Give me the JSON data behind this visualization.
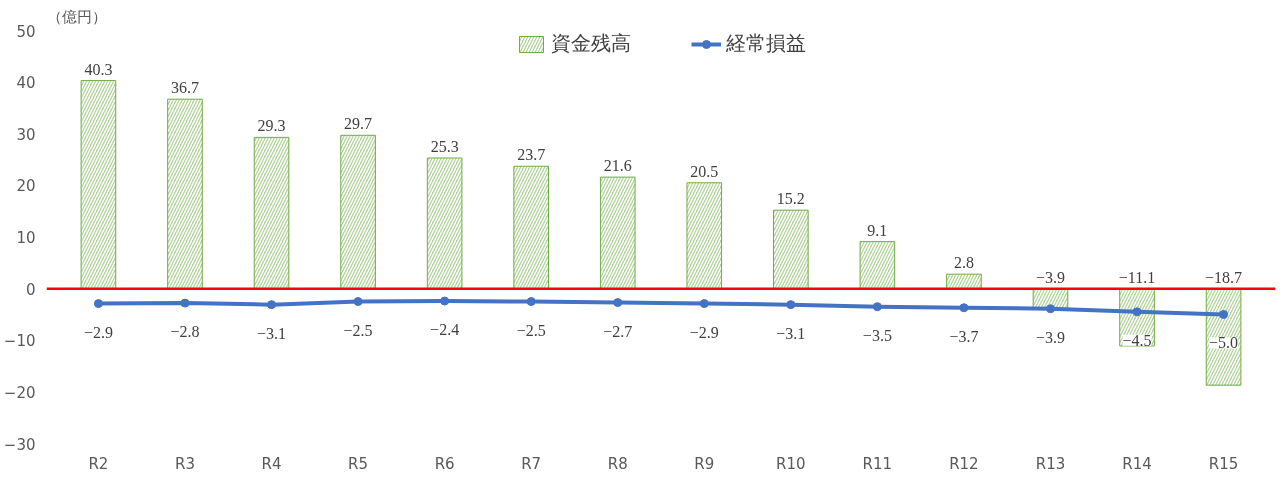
{
  "chart_data": {
    "type": "bar",
    "ylabel": "（億円）",
    "categories": [
      "R2",
      "R3",
      "R4",
      "R5",
      "R6",
      "R7",
      "R8",
      "R9",
      "R10",
      "R11",
      "R12",
      "R13",
      "R14",
      "R15"
    ],
    "series": [
      {
        "name": "資金残高",
        "color": "#70ad47",
        "values": [
          40.3,
          36.7,
          29.3,
          29.7,
          25.3,
          23.7,
          21.6,
          20.5,
          15.2,
          9.1,
          2.8,
          -3.9,
          -11.1,
          -18.7
        ]
      },
      {
        "name": "経常損益",
        "type": "line",
        "color": "#4472c4",
        "values": [
          -2.9,
          -2.8,
          -3.1,
          -2.5,
          -2.4,
          -2.5,
          -2.7,
          -2.9,
          -3.1,
          -3.5,
          -3.7,
          -3.9,
          -4.5,
          -5.0
        ],
        "value_labels": [
          "−2.9",
          "−2.8",
          "−3.1",
          "−2.5",
          "−2.4",
          "−2.5",
          "−2.7",
          "−2.9",
          "−3.1",
          "−3.5",
          "−3.7",
          "−3.9",
          "−4.5",
          "−5.0"
        ]
      }
    ],
    "ylim": [
      -30,
      50
    ],
    "yticks": [
      -30,
      -20,
      -10,
      0,
      10,
      20,
      30,
      40,
      50
    ],
    "ref_lines": [
      {
        "axis": "y",
        "value": 0,
        "color": "#ff0000"
      }
    ],
    "data_labels": true,
    "legend": "top",
    "grid": false,
    "marker": "circle",
    "line_style": "solid"
  }
}
